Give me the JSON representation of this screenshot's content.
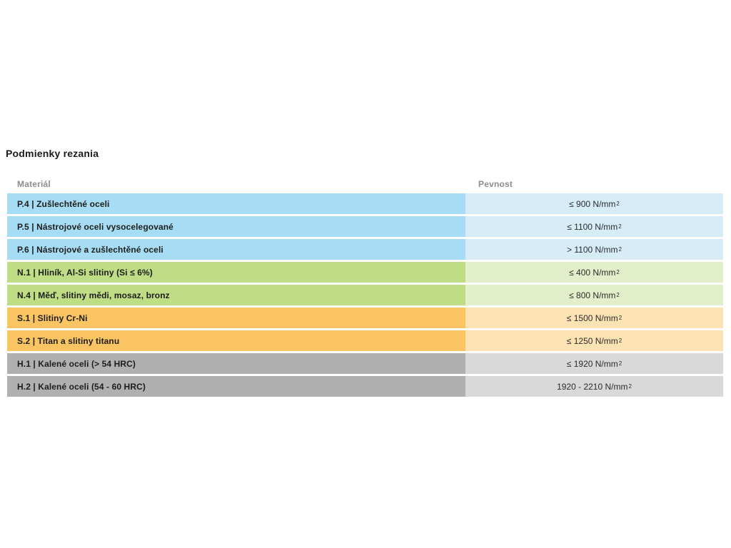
{
  "page_title": "Podmienky rezania",
  "table": {
    "headers": {
      "material": "Materiál",
      "pevnost": "Pevnost"
    },
    "rows": [
      {
        "material": "P.4 | Zušlechtěné oceli",
        "pevnost": "≤ 900 N/mm",
        "pevnost_sup": "2",
        "category": "P"
      },
      {
        "material": "P.5 | Nástrojové oceli vysocelegované",
        "pevnost": "≤ 1100 N/mm",
        "pevnost_sup": "2",
        "category": "P"
      },
      {
        "material": "P.6 | Nástrojové a zušlechtěné oceli",
        "pevnost": "> 1100 N/mm",
        "pevnost_sup": "2",
        "category": "P"
      },
      {
        "material": "N.1 | Hliník, Al-Si slitiny (Si ≤ 6%)",
        "pevnost": "≤ 400 N/mm",
        "pevnost_sup": "2",
        "category": "N"
      },
      {
        "material": "N.4 | Měď, slitiny mědi, mosaz, bronz",
        "pevnost": "≤ 800 N/mm",
        "pevnost_sup": "2",
        "category": "N"
      },
      {
        "material": "S.1 | Slitiny Cr-Ni",
        "pevnost": "≤ 1500 N/mm",
        "pevnost_sup": "2",
        "category": "S"
      },
      {
        "material": "S.2 | Titan a slitiny titanu",
        "pevnost": "≤ 1250 N/mm",
        "pevnost_sup": "2",
        "category": "S"
      },
      {
        "material": "H.1 | Kalené oceli (> 54 HRC)",
        "pevnost": "≤ 1920 N/mm",
        "pevnost_sup": "2",
        "category": "H"
      },
      {
        "material": "H.2 | Kalené oceli (54 - 60 HRC)",
        "pevnost": "1920 - 2210 N/mm",
        "pevnost_sup": "2",
        "category": "H"
      }
    ]
  },
  "colors": {
    "P": {
      "left": "#a6ddf4",
      "right": "#d6edf8"
    },
    "N": {
      "left": "#bedd85",
      "right": "#e3efca"
    },
    "S": {
      "left": "#fac463",
      "right": "#fde2b3"
    },
    "H": {
      "left": "#b0b0b1",
      "right": "#d9d9da"
    }
  }
}
